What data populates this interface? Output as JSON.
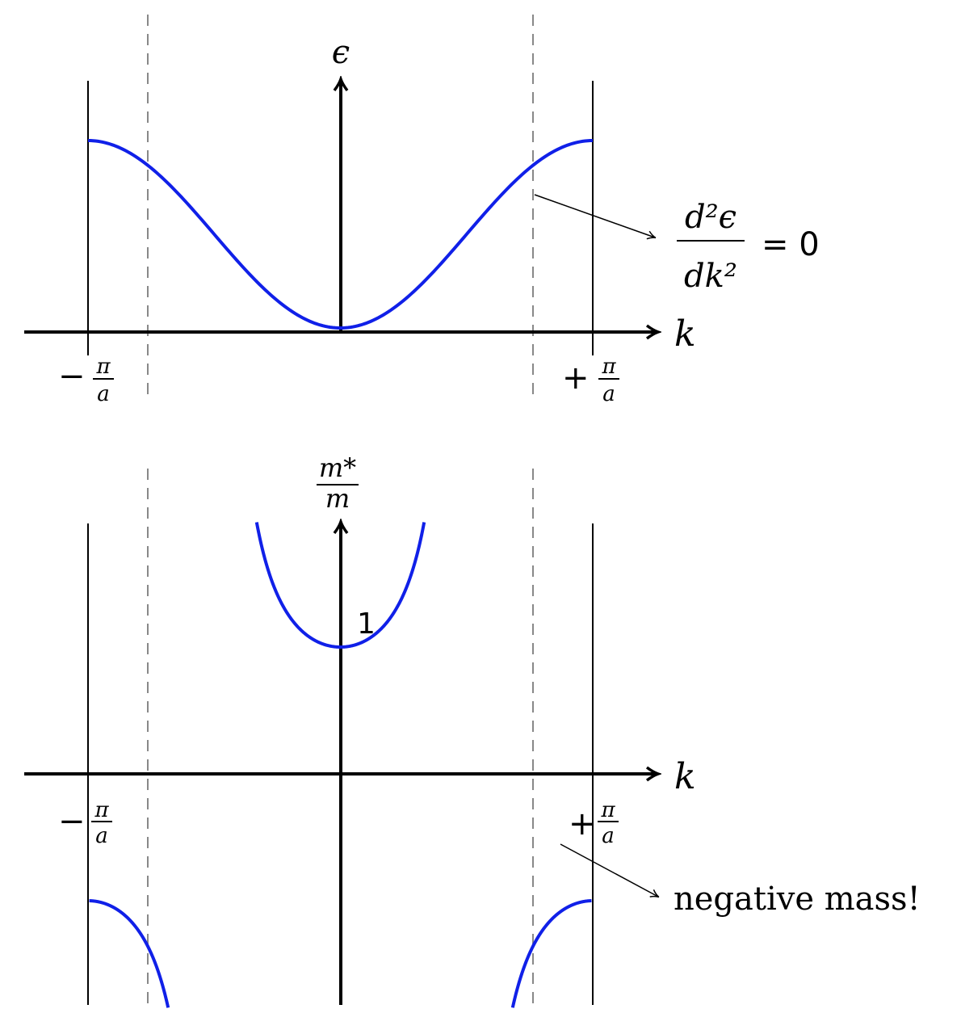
{
  "top_plot": {
    "y_axis_label": "ϵ",
    "x_axis_label": "k",
    "left_tick": {
      "sign": "−",
      "num": "π",
      "den": "a"
    },
    "right_tick": {
      "sign": "+",
      "num": "π",
      "den": "a"
    },
    "annotation": {
      "num": "d²ϵ",
      "den": "dk²",
      "rhs": "= 0"
    }
  },
  "bottom_plot": {
    "y_axis_label": {
      "num": "m*",
      "den": "m"
    },
    "x_axis_label": "k",
    "one_label": "1",
    "left_tick": {
      "sign": "−",
      "num": "π",
      "den": "a"
    },
    "right_tick": {
      "sign": "+",
      "num": "π",
      "den": "a"
    },
    "annotation": "negative mass!"
  },
  "colors": {
    "curve": "#1020e8",
    "axis": "#000000",
    "dashed": "#888888"
  }
}
